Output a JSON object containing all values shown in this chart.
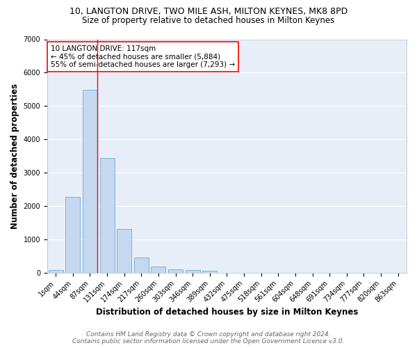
{
  "title_line1": "10, LANGTON DRIVE, TWO MILE ASH, MILTON KEYNES, MK8 8PD",
  "title_line2": "Size of property relative to detached houses in Milton Keynes",
  "xlabel": "Distribution of detached houses by size in Milton Keynes",
  "ylabel": "Number of detached properties",
  "footer_line1": "Contains HM Land Registry data © Crown copyright and database right 2024.",
  "footer_line2": "Contains public sector information licensed under the Open Government Licence v3.0.",
  "annotation_title": "10 LANGTON DRIVE: 117sqm",
  "annotation_line1": "← 45% of detached houses are smaller (5,884)",
  "annotation_line2": "55% of semi-detached houses are larger (7,293) →",
  "bar_categories": [
    "1sqm",
    "44sqm",
    "87sqm",
    "131sqm",
    "174sqm",
    "217sqm",
    "260sqm",
    "303sqm",
    "346sqm",
    "389sqm",
    "432sqm",
    "475sqm",
    "518sqm",
    "561sqm",
    "604sqm",
    "648sqm",
    "691sqm",
    "734sqm",
    "777sqm",
    "820sqm",
    "863sqm"
  ],
  "bar_values": [
    75,
    2280,
    5480,
    3430,
    1310,
    460,
    185,
    105,
    70,
    55,
    0,
    0,
    0,
    0,
    0,
    0,
    0,
    0,
    0,
    0,
    0
  ],
  "bar_color": "#c5d8f0",
  "bar_edge_color": "#6aaad4",
  "red_line_bin_index": 2,
  "ylim": [
    0,
    7000
  ],
  "background_color": "#e8eef8",
  "grid_color": "#ffffff",
  "fig_background": "#ffffff",
  "title_fontsize": 9,
  "subtitle_fontsize": 8.5,
  "axis_label_fontsize": 8.5,
  "tick_fontsize": 7,
  "annotation_fontsize": 7.5,
  "footer_fontsize": 6.5
}
